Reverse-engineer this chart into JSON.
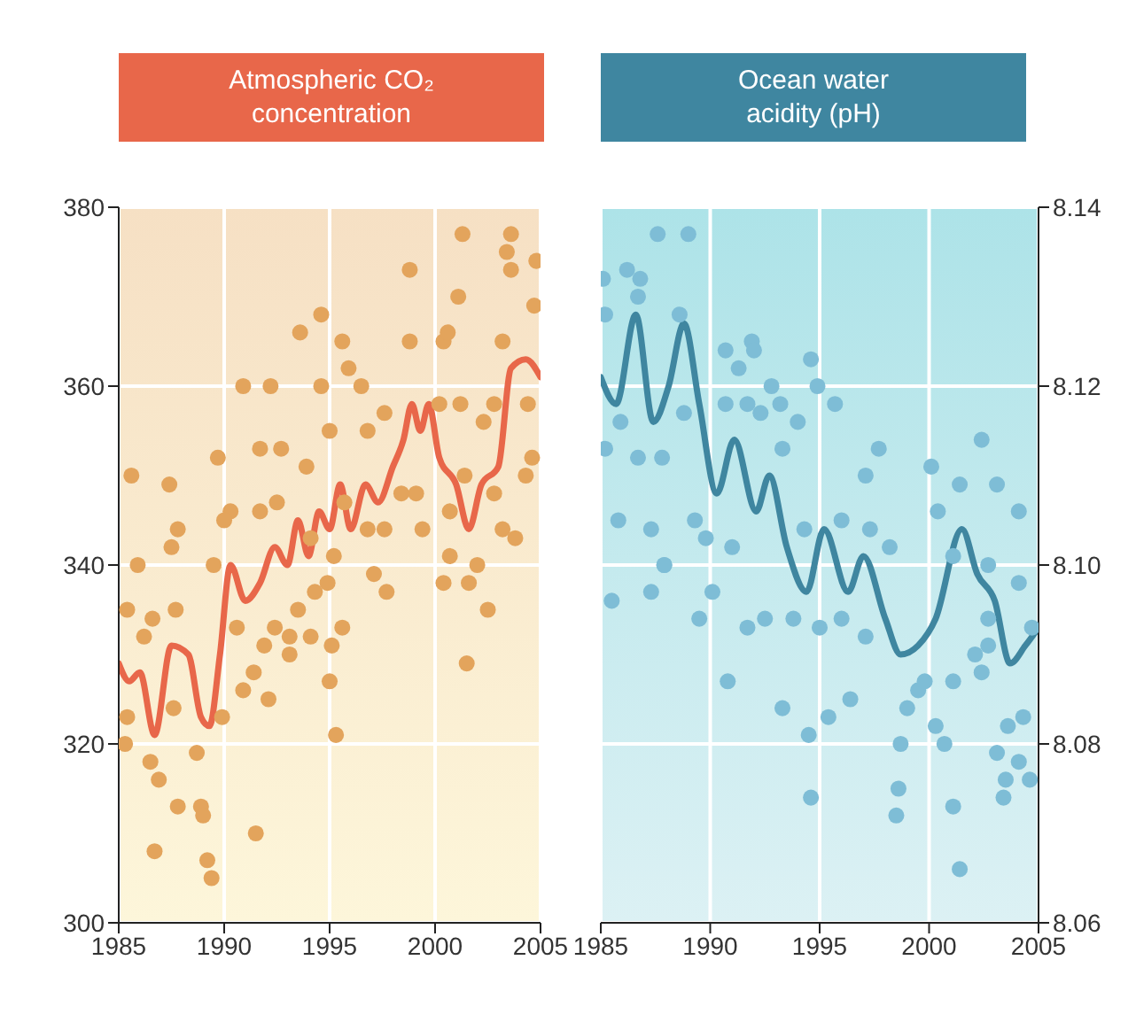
{
  "chart_data": [
    {
      "type": "scatter",
      "title": "Atmospheric CO₂ concentration",
      "xlim": [
        1985,
        2005
      ],
      "xticks": [
        1985,
        1990,
        1995,
        2000,
        2005
      ],
      "ylim": [
        300,
        380
      ],
      "yticks": [
        300,
        320,
        340,
        360,
        380
      ],
      "grid": true,
      "series": [
        {
          "type": "scatter",
          "marker": "circle",
          "color": "#e3a45c",
          "x": [
            1985.6,
            1987.4,
            1985.9,
            1987.8,
            1987.5,
            1989.7,
            1990.9,
            1992.2,
            1993.6,
            1994.6,
            1994.6,
            1995.6,
            1995.9,
            1996.5,
            1998.8,
            1998.8,
            2001.1,
            2001.3,
            2000.4,
            2000.6,
            2003.6,
            2003.4,
            2003.6,
            2004.8,
            2004.7,
            2003.2,
            1991.7,
            1992.7,
            1993.9,
            1995.0,
            1996.8,
            1997.6,
            1998.4,
            1999.1,
            2000.2,
            2001.2,
            2002.3,
            2002.8,
            2004.4,
            2004.6,
            2004.3,
            2000.7,
            2001.4,
            2002.8,
            2003.2,
            2000.7,
            2002.0,
            2003.8,
            1995.7,
            1996.8,
            1997.6,
            1999.4,
            1995.2,
            1994.1,
            1992.5,
            1991.7,
            1990.3,
            1990.0,
            1989.5,
            1985.4,
            1986.6,
            1987.7,
            1986.2,
            1985.4,
            1985.3,
            1986.5,
            1986.9,
            1986.7,
            1987.8,
            1987.6,
            1988.7,
            1988.9,
            1989.0,
            1989.2,
            1989.4,
            1989.9,
            1990.6,
            1990.9,
            1991.4,
            1992.1,
            1991.9,
            1992.4,
            1993.1,
            1993.1,
            1994.1,
            1995.0,
            1995.1,
            1995.3,
            1995.6,
            1991.5,
            2001.5,
            2002.5,
            2000.4,
            2001.6,
            1997.7,
            1993.5,
            1994.3,
            1994.9,
            1997.1
          ],
          "values": [
            350,
            349,
            340,
            344,
            342,
            352,
            360,
            360,
            366,
            368,
            360,
            365,
            362,
            360,
            373,
            365,
            370,
            377,
            365,
            366,
            377,
            375,
            373,
            374,
            369,
            365,
            353,
            353,
            351,
            355,
            355,
            357,
            348,
            348,
            358,
            358,
            356,
            358,
            358,
            352,
            350,
            346,
            350,
            348,
            344,
            341,
            340,
            343,
            347,
            344,
            344,
            344,
            341,
            343,
            347,
            346,
            346,
            345,
            340,
            335,
            334,
            335,
            332,
            323,
            320,
            318,
            316,
            308,
            313,
            324,
            319,
            313,
            312,
            307,
            305,
            323,
            333,
            326,
            328,
            325,
            331,
            333,
            332,
            330,
            332,
            327,
            331,
            321,
            333,
            310,
            329,
            335,
            338,
            338,
            337,
            335,
            337,
            338,
            339
          ]
        },
        {
          "type": "line",
          "marker": "none",
          "color": "#e8674a",
          "x": [
            1985,
            1985.5,
            1986,
            1986.7,
            1987.5,
            1988.3,
            1988.9,
            1989.3,
            1989.8,
            1990.3,
            1991,
            1991.7,
            1992.4,
            1993,
            1993.5,
            1994,
            1994.5,
            1995,
            1995.5,
            1996,
            1996.7,
            1997.3,
            1998,
            1998.5,
            1998.9,
            1999.3,
            1999.7,
            2000.2,
            2001,
            2001.6,
            2002.2,
            2003,
            2003.6,
            2004.3,
            2005
          ],
          "values": [
            329,
            327,
            328,
            321,
            331,
            330,
            323,
            322,
            330,
            340,
            336,
            338,
            342,
            340,
            345,
            341,
            346,
            344,
            349,
            344,
            349,
            347,
            351,
            354,
            358,
            355,
            358,
            352,
            349,
            344,
            349,
            351,
            362,
            363,
            361
          ]
        }
      ]
    },
    {
      "type": "scatter",
      "title": "Ocean water acidity (pH)",
      "xlim": [
        1985,
        2005
      ],
      "xticks": [
        1985,
        1990,
        1995,
        2000,
        2005
      ],
      "ylim": [
        8.06,
        8.14
      ],
      "yticks": [
        8.06,
        8.08,
        {
          "value": 8.1,
          "label": "8.10"
        },
        8.12,
        8.14
      ],
      "grid": true,
      "series": [
        {
          "type": "scatter",
          "marker": "circle",
          "color": "#7ebdd6",
          "x": [
            1987.6,
            1989.0,
            1986.2,
            1985.1,
            1986.8,
            1986.7,
            1985.2,
            1988.6,
            1991.9,
            1990.7,
            1992.0,
            1994.6,
            1991.3,
            1994.9,
            1992.8,
            1995.7,
            1985.9,
            1988.8,
            1985.2,
            1986.7,
            1987.8,
            1990.7,
            1991.7,
            1992.3,
            1993.2,
            1994.0,
            1993.3,
            1997.7,
            1997.1,
            2000.1,
            2002.4,
            2001.4,
            2003.1,
            2004.1,
            2000.4,
            1985.8,
            1987.3,
            1989.3,
            1989.8,
            1991.0,
            1987.9,
            1994.3,
            1996.0,
            1997.3,
            1998.2,
            2001.1,
            2002.7,
            1985.5,
            1987.3,
            1987.9,
            1989.5,
            1990.1,
            1990.8,
            1991.7,
            1992.5,
            1993.3,
            1993.8,
            1994.5,
            1994.6,
            1995.0,
            1995.4,
            1996.4,
            1996.0,
            1997.1,
            1998.6,
            1998.5,
            1998.7,
            1999.0,
            1999.5,
            1999.8,
            2000.3,
            2000.7,
            2001.1,
            2001.1,
            2001.4,
            2002.1,
            2002.7,
            2002.4,
            2003.1,
            2003.5,
            2003.4,
            2004.1,
            2004.6,
            2003.6,
            2004.3,
            2004.1,
            2004.7,
            2002.7
          ],
          "values": [
            8.137,
            8.137,
            8.133,
            8.132,
            8.132,
            8.13,
            8.128,
            8.128,
            8.125,
            8.124,
            8.124,
            8.123,
            8.122,
            8.12,
            8.12,
            8.118,
            8.116,
            8.117,
            8.113,
            8.112,
            8.112,
            8.118,
            8.118,
            8.117,
            8.118,
            8.116,
            8.113,
            8.113,
            8.11,
            8.111,
            8.114,
            8.109,
            8.109,
            8.106,
            8.106,
            8.105,
            8.104,
            8.105,
            8.103,
            8.102,
            8.1,
            8.104,
            8.105,
            8.104,
            8.102,
            8.101,
            8.1,
            8.096,
            8.097,
            8.1,
            8.094,
            8.097,
            8.087,
            8.093,
            8.094,
            8.084,
            8.094,
            8.081,
            8.074,
            8.093,
            8.083,
            8.085,
            8.094,
            8.092,
            8.075,
            8.072,
            8.08,
            8.084,
            8.086,
            8.087,
            8.082,
            8.08,
            8.087,
            8.073,
            8.066,
            8.09,
            8.094,
            8.088,
            8.079,
            8.076,
            8.074,
            8.078,
            8.076,
            8.082,
            8.083,
            8.098,
            8.093,
            8.091
          ]
        },
        {
          "type": "line",
          "marker": "none",
          "color": "#3f86a0",
          "x": [
            1985,
            1985.7,
            1986.6,
            1987.4,
            1988.1,
            1988.8,
            1989.5,
            1990.3,
            1991.1,
            1992.1,
            1992.7,
            1993.5,
            1994.4,
            1995.2,
            1996.3,
            1997,
            1998,
            1998.7,
            1999.5,
            2000.3,
            2001.5,
            2002.2,
            2003,
            2003.7,
            2004.4,
            2005
          ],
          "values": [
            8.121,
            8.118,
            8.128,
            8.116,
            8.12,
            8.127,
            8.118,
            8.108,
            8.114,
            8.106,
            8.11,
            8.102,
            8.097,
            8.104,
            8.097,
            8.101,
            8.094,
            8.09,
            8.091,
            8.094,
            8.104,
            8.099,
            8.096,
            8.089,
            8.091,
            8.093
          ]
        }
      ]
    }
  ]
}
